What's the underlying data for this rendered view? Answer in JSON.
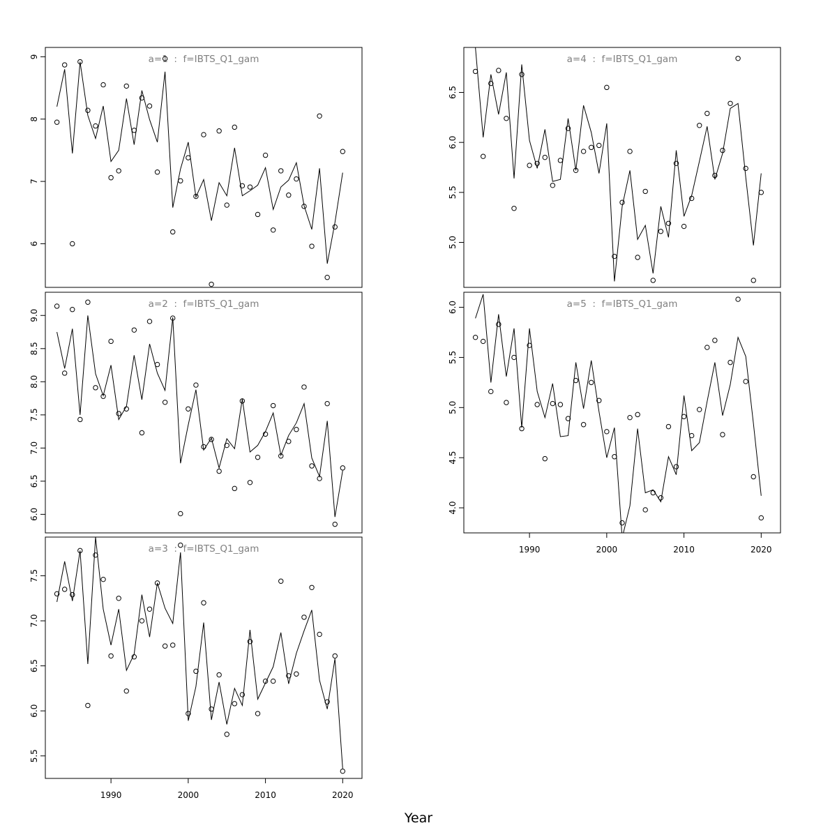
{
  "figure": {
    "xlabel": "Year"
  },
  "chart_data": [
    {
      "type": "line",
      "title": "a=1  :  f=IBTS_Q1_gam",
      "ylim": [
        5.3,
        9.15
      ],
      "yticks": [
        6,
        7,
        8,
        9
      ],
      "xticks": [],
      "x": [
        1983,
        1984,
        1985,
        1986,
        1987,
        1988,
        1989,
        1990,
        1991,
        1992,
        1993,
        1994,
        1995,
        1996,
        1997,
        1998,
        1999,
        2000,
        2001,
        2002,
        2003,
        2004,
        2005,
        2006,
        2007,
        2008,
        2009,
        2010,
        2011,
        2012,
        2013,
        2014,
        2015,
        2016,
        2017,
        2018,
        2019,
        2020
      ],
      "series": [
        {
          "role": "points",
          "values": [
            7.95,
            8.87,
            6.0,
            8.92,
            8.14,
            7.89,
            8.55,
            7.06,
            7.17,
            8.53,
            7.82,
            8.34,
            8.21,
            7.15,
            8.97,
            6.19,
            7.01,
            7.38,
            6.76,
            7.75,
            5.35,
            7.81,
            6.62,
            7.87,
            6.93,
            6.91,
            6.47,
            7.42,
            6.22,
            7.17,
            6.78,
            7.04,
            6.6,
            5.96,
            8.05,
            5.46,
            6.27,
            7.48
          ]
        },
        {
          "role": "line",
          "values": [
            8.2,
            8.8,
            7.45,
            8.92,
            8.06,
            7.69,
            8.21,
            7.32,
            7.5,
            8.33,
            7.59,
            8.46,
            7.99,
            7.63,
            8.76,
            6.58,
            7.2,
            7.63,
            6.75,
            7.03,
            6.37,
            6.98,
            6.77,
            7.54,
            6.77,
            6.85,
            6.94,
            7.22,
            6.55,
            6.91,
            7.02,
            7.3,
            6.61,
            6.23,
            7.21,
            5.68,
            6.34,
            7.14
          ]
        }
      ]
    },
    {
      "type": "line",
      "title": "a=2  :  f=IBTS_Q1_gam",
      "ylim": [
        5.72,
        9.35
      ],
      "yticks": [
        6.0,
        6.5,
        7.0,
        7.5,
        8.0,
        8.5,
        9.0
      ],
      "xticks": [],
      "x": [
        1983,
        1984,
        1985,
        1986,
        1987,
        1988,
        1989,
        1990,
        1991,
        1992,
        1993,
        1994,
        1995,
        1996,
        1997,
        1998,
        1999,
        2000,
        2001,
        2002,
        2003,
        2004,
        2005,
        2006,
        2007,
        2008,
        2009,
        2010,
        2011,
        2012,
        2013,
        2014,
        2015,
        2016,
        2017,
        2018,
        2019,
        2020
      ],
      "series": [
        {
          "role": "points",
          "values": [
            9.14,
            8.13,
            9.09,
            7.43,
            9.2,
            7.91,
            7.78,
            8.61,
            7.52,
            7.59,
            8.78,
            7.23,
            8.91,
            8.26,
            7.69,
            8.96,
            6.01,
            7.59,
            7.95,
            7.02,
            7.13,
            6.65,
            7.04,
            6.39,
            7.71,
            6.48,
            6.86,
            7.21,
            7.64,
            6.88,
            7.1,
            7.28,
            7.92,
            6.73,
            6.54,
            7.67,
            5.85,
            6.7
          ]
        },
        {
          "role": "line",
          "values": [
            8.75,
            8.2,
            8.8,
            7.5,
            9.0,
            8.12,
            7.79,
            8.25,
            7.43,
            7.63,
            8.4,
            7.73,
            8.57,
            8.13,
            7.87,
            8.97,
            6.77,
            7.35,
            7.88,
            6.97,
            7.15,
            6.7,
            7.14,
            6.99,
            7.74,
            6.94,
            7.04,
            7.25,
            7.53,
            6.89,
            7.19,
            7.38,
            7.67,
            6.85,
            6.57,
            7.41,
            5.96,
            6.66
          ]
        }
      ]
    },
    {
      "type": "line",
      "title": "a=3  :  f=IBTS_Q1_gam",
      "ylim": [
        5.25,
        7.93
      ],
      "yticks": [
        5.5,
        6.0,
        6.5,
        7.0,
        7.5
      ],
      "xticks": [
        1990,
        2000,
        2010,
        2020
      ],
      "x": [
        1983,
        1984,
        1985,
        1986,
        1987,
        1988,
        1989,
        1990,
        1991,
        1992,
        1993,
        1994,
        1995,
        1996,
        1997,
        1998,
        1999,
        2000,
        2001,
        2002,
        2003,
        2004,
        2005,
        2006,
        2007,
        2008,
        2009,
        2010,
        2011,
        2012,
        2013,
        2014,
        2015,
        2016,
        2017,
        2018,
        2019,
        2020
      ],
      "series": [
        {
          "role": "points",
          "values": [
            7.3,
            7.35,
            7.29,
            7.78,
            6.06,
            7.73,
            7.46,
            6.61,
            7.25,
            6.22,
            6.6,
            7.0,
            7.13,
            7.42,
            6.72,
            6.73,
            7.84,
            5.97,
            6.44,
            7.2,
            6.02,
            6.4,
            5.74,
            6.08,
            6.18,
            6.77,
            5.97,
            6.33,
            6.33,
            7.44,
            6.39,
            6.41,
            7.04,
            7.37,
            6.85,
            6.1,
            6.61,
            5.33
          ]
        },
        {
          "role": "line",
          "values": [
            7.21,
            7.66,
            7.22,
            7.78,
            6.52,
            7.93,
            7.13,
            6.73,
            7.13,
            6.45,
            6.63,
            7.29,
            6.82,
            7.42,
            7.14,
            6.97,
            7.76,
            5.89,
            6.27,
            6.98,
            5.9,
            6.32,
            5.85,
            6.25,
            6.06,
            6.9,
            6.13,
            6.31,
            6.49,
            6.87,
            6.3,
            6.64,
            6.89,
            7.12,
            6.34,
            6.02,
            6.58,
            5.36
          ]
        }
      ]
    },
    {
      "type": "line",
      "title": "a=4  :  f=IBTS_Q1_gam",
      "ylim": [
        4.55,
        6.95
      ],
      "yticks": [
        5.0,
        5.5,
        6.0,
        6.5
      ],
      "xticks": [],
      "x": [
        1983,
        1984,
        1985,
        1986,
        1987,
        1988,
        1989,
        1990,
        1991,
        1992,
        1993,
        1994,
        1995,
        1996,
        1997,
        1998,
        1999,
        2000,
        2001,
        2002,
        2003,
        2004,
        2005,
        2006,
        2007,
        2008,
        2009,
        2010,
        2011,
        2012,
        2013,
        2014,
        2015,
        2016,
        2017,
        2018,
        2019,
        2020
      ],
      "series": [
        {
          "role": "points",
          "values": [
            6.71,
            5.86,
            6.59,
            6.72,
            6.24,
            5.34,
            6.68,
            5.77,
            5.79,
            5.85,
            5.57,
            5.82,
            6.14,
            5.72,
            5.91,
            5.95,
            5.97,
            6.55,
            4.86,
            5.4,
            5.91,
            4.85,
            5.51,
            4.62,
            5.11,
            5.19,
            5.79,
            5.16,
            5.44,
            6.17,
            6.29,
            5.67,
            5.92,
            6.39,
            6.84,
            5.74,
            4.62,
            5.5
          ]
        },
        {
          "role": "line",
          "values": [
            6.95,
            6.05,
            6.68,
            6.28,
            6.7,
            5.64,
            6.78,
            6.02,
            5.74,
            6.13,
            5.61,
            5.63,
            6.24,
            5.72,
            6.37,
            6.1,
            5.69,
            6.19,
            4.61,
            5.36,
            5.72,
            5.03,
            5.17,
            4.69,
            5.36,
            5.05,
            5.92,
            5.26,
            5.47,
            5.81,
            6.16,
            5.63,
            5.89,
            6.34,
            6.39,
            5.65,
            4.97,
            5.69
          ]
        }
      ]
    },
    {
      "type": "line",
      "title": "a=5  :  f=IBTS_Q1_gam",
      "ylim": [
        3.75,
        6.15
      ],
      "yticks": [
        4.0,
        4.5,
        5.0,
        5.5,
        6.0
      ],
      "xticks": [
        1990,
        2000,
        2010,
        2020
      ],
      "x": [
        1983,
        1984,
        1985,
        1986,
        1987,
        1988,
        1989,
        1990,
        1991,
        1992,
        1993,
        1994,
        1995,
        1996,
        1997,
        1998,
        1999,
        2000,
        2001,
        2002,
        2003,
        2004,
        2005,
        2006,
        2007,
        2008,
        2009,
        2010,
        2011,
        2012,
        2013,
        2014,
        2015,
        2016,
        2017,
        2018,
        2019,
        2020
      ],
      "series": [
        {
          "role": "points",
          "values": [
            5.7,
            5.66,
            5.16,
            5.83,
            5.05,
            5.5,
            4.79,
            5.62,
            5.03,
            4.49,
            5.04,
            5.03,
            4.89,
            5.27,
            4.83,
            5.25,
            5.07,
            4.76,
            4.51,
            3.85,
            4.9,
            4.93,
            3.98,
            4.15,
            4.1,
            4.81,
            4.41,
            4.91,
            4.72,
            4.98,
            5.6,
            5.67,
            4.73,
            5.45,
            6.08,
            5.26,
            4.31,
            3.9
          ]
        },
        {
          "role": "line",
          "values": [
            5.89,
            6.13,
            5.25,
            5.93,
            5.31,
            5.79,
            4.8,
            5.79,
            5.16,
            4.9,
            5.24,
            4.71,
            4.72,
            5.45,
            4.99,
            5.47,
            4.96,
            4.5,
            4.8,
            3.7,
            4.02,
            4.79,
            4.15,
            4.18,
            4.06,
            4.51,
            4.33,
            5.12,
            4.57,
            4.65,
            5.06,
            5.45,
            4.92,
            5.23,
            5.7,
            5.51,
            4.84,
            4.12
          ]
        }
      ]
    }
  ]
}
